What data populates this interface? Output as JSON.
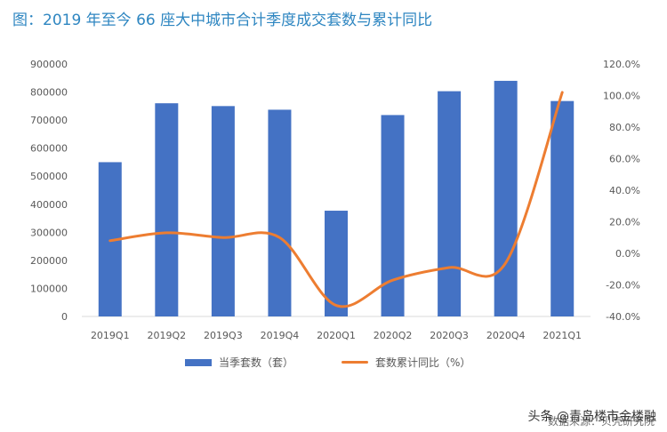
{
  "title": "图：2019 年至今 66 座大中城市合计季度成交套数与累计同比",
  "chart_data": {
    "type": "bar",
    "categories": [
      "2019Q1",
      "2019Q2",
      "2019Q3",
      "2019Q4",
      "2020Q1",
      "2020Q2",
      "2020Q3",
      "2020Q4",
      "2021Q1"
    ],
    "series": [
      {
        "name": "当季套数（套）",
        "type": "bar",
        "axis": "left",
        "color": "#4472c4",
        "values": [
          550000,
          760000,
          750000,
          737000,
          377000,
          718000,
          803000,
          840000,
          768000
        ]
      },
      {
        "name": "套数累计同比（%）",
        "type": "line",
        "axis": "right",
        "color": "#ed7d31",
        "values": [
          8,
          13,
          10,
          10,
          -33,
          -17,
          -9,
          -6,
          102
        ]
      }
    ],
    "y_left": {
      "min": 0,
      "max": 900000,
      "ticks": [
        "0",
        "100000",
        "200000",
        "300000",
        "400000",
        "500000",
        "600000",
        "700000",
        "800000",
        "900000"
      ]
    },
    "y_right": {
      "min": -40,
      "max": 120,
      "ticks": [
        "-40.0%",
        "-20.0%",
        "0.0%",
        "20.0%",
        "40.0%",
        "60.0%",
        "80.0%",
        "100.0%",
        "120.0%"
      ]
    },
    "grid": false,
    "legend": "bottom"
  },
  "legend": {
    "bar_label": "当季套数（套）",
    "line_label": "套数累计同比（%）"
  },
  "watermark": "头条 @青岛楼市金楼融",
  "source": "数据来源：贝壳研究院",
  "colors": {
    "title": "#2e86c1",
    "bar": "#4472c4",
    "line": "#ed7d31",
    "text": "#595959"
  }
}
